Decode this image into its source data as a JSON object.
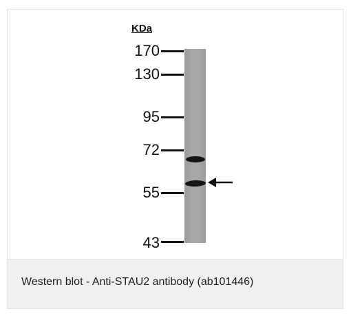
{
  "figure": {
    "unit_label": "KDa",
    "markers": [
      {
        "label": "170",
        "kda": 170
      },
      {
        "label": "130",
        "kda": 130
      },
      {
        "label": "95",
        "kda": 95
      },
      {
        "label": "72",
        "kda": 72
      },
      {
        "label": "55",
        "kda": 55
      },
      {
        "label": "43",
        "kda": 43
      }
    ],
    "lane_color": "#a6a6a6",
    "band_color": "#151515"
  },
  "caption": {
    "text": "Western blot - Anti-STAU2 antibody (ab101446)"
  }
}
